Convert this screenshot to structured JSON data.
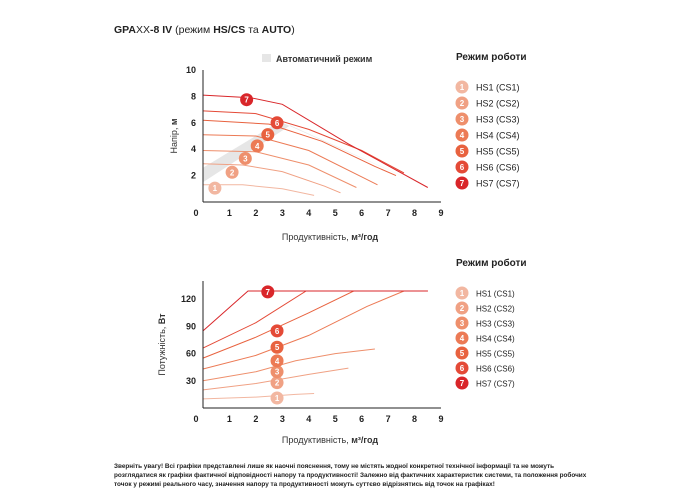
{
  "header": {
    "title_prefix": "GPA",
    "title_xx": "XX",
    "title_model": "-8 IV",
    "title_mid": " (режим ",
    "title_hscs": "HS/CS",
    "title_and": " та ",
    "title_auto": "AUTO",
    "title_end": ")"
  },
  "colors": {
    "mode1": "#f2b7a1",
    "mode2": "#f0a184",
    "mode3": "#ee8f6c",
    "mode4": "#ec7a55",
    "mode5": "#e8623f",
    "mode6": "#e44a37",
    "mode7": "#d9262a",
    "auto_area": "#e6e6e6",
    "axis": "#222222"
  },
  "legend_top": {
    "title": "Режим роботи",
    "items": [
      {
        "num": "1",
        "label": "HS1 (CS1)"
      },
      {
        "num": "2",
        "label": "HS2 (CS2)"
      },
      {
        "num": "3",
        "label": "HS3 (CS3)"
      },
      {
        "num": "4",
        "label": "HS4 (CS4)"
      },
      {
        "num": "5",
        "label": "HS5 (CS5)"
      },
      {
        "num": "6",
        "label": "HS6 (CS6)"
      },
      {
        "num": "7",
        "label": "HS7 (CS7)"
      }
    ]
  },
  "legend_bottom": {
    "title": "Режим роботи",
    "items": [
      {
        "num": "1",
        "label": "HS1 (CS1)"
      },
      {
        "num": "2",
        "label": "HS2 (CS2)"
      },
      {
        "num": "3",
        "label": "HS3 (CS3)"
      },
      {
        "num": "4",
        "label": "HS4 (CS4)"
      },
      {
        "num": "5",
        "label": "HS5 (CS5)"
      },
      {
        "num": "6",
        "label": "HS6 (CS6)"
      },
      {
        "num": "7",
        "label": "HS7 (CS7)"
      }
    ]
  },
  "chart_data": [
    {
      "type": "line",
      "title": "",
      "legend_area_label": "Автоматичний режим",
      "xlabel": "Продуктивність, ",
      "xlabel_unit": "м³/год",
      "ylabel": "Напір, ",
      "ylabel_unit": "м",
      "xlim": [
        0,
        9
      ],
      "ylim": [
        0,
        10
      ],
      "xticks": [
        "0",
        "1",
        "2",
        "3",
        "4",
        "5",
        "6",
        "7",
        "8",
        "9"
      ],
      "yticks": [
        "2",
        "4",
        "6",
        "8",
        "10"
      ],
      "grid": false,
      "auto_area": [
        [
          0,
          1.5
        ],
        [
          3.3,
          5.8
        ],
        [
          8.5,
          1.1
        ],
        [
          8.5,
          1.1
        ],
        [
          2.9,
          6.1
        ],
        [
          0,
          2.6
        ]
      ],
      "series": [
        {
          "mode": "1",
          "points": [
            [
              0,
              1.3
            ],
            [
              1.5,
              1.3
            ],
            [
              3,
              1.0
            ],
            [
              4.2,
              0.5
            ]
          ],
          "marker": [
            0.45,
            1.05
          ]
        },
        {
          "mode": "2",
          "points": [
            [
              0,
              2.9
            ],
            [
              1.5,
              2.8
            ],
            [
              3,
              2.3
            ],
            [
              4.6,
              1.2
            ],
            [
              5.2,
              0.7
            ]
          ],
          "marker": [
            1.1,
            2.25
          ]
        },
        {
          "mode": "3",
          "points": [
            [
              0,
              3.9
            ],
            [
              2,
              3.8
            ],
            [
              4,
              2.8
            ],
            [
              5.8,
              1.1
            ]
          ],
          "marker": [
            1.6,
            3.3
          ]
        },
        {
          "mode": "4",
          "points": [
            [
              0,
              5.1
            ],
            [
              2,
              5.0
            ],
            [
              4,
              3.9
            ],
            [
              6.1,
              1.8
            ],
            [
              6.6,
              1.3
            ]
          ],
          "marker": [
            2.05,
            4.25
          ]
        },
        {
          "mode": "5",
          "points": [
            [
              0,
              6.2
            ],
            [
              2.5,
              5.9
            ],
            [
              4.5,
              4.6
            ],
            [
              6.5,
              2.7
            ],
            [
              7.3,
              2.0
            ]
          ],
          "marker": [
            2.45,
            5.1
          ]
        },
        {
          "mode": "6",
          "points": [
            [
              0,
              6.9
            ],
            [
              2,
              6.7
            ],
            [
              4,
              5.5
            ],
            [
              6,
              3.9
            ],
            [
              7.6,
              2.2
            ]
          ],
          "marker": [
            2.8,
            6.0
          ]
        },
        {
          "mode": "7",
          "points": [
            [
              0,
              8.1
            ],
            [
              1.8,
              7.9
            ],
            [
              3,
              7.4
            ],
            [
              5.5,
              4.4
            ],
            [
              8.5,
              1.1
            ]
          ],
          "marker": [
            1.65,
            7.75
          ]
        }
      ]
    },
    {
      "type": "line",
      "title": "",
      "xlabel": "Продуктивність, ",
      "xlabel_unit": "м³/год",
      "ylabel": "Потужність, ",
      "ylabel_unit": "Вт",
      "xlim": [
        0,
        9
      ],
      "ylim": [
        0,
        140
      ],
      "xticks": [
        "0",
        "1",
        "2",
        "3",
        "4",
        "5",
        "6",
        "7",
        "8",
        "9"
      ],
      "yticks": [
        "30",
        "60",
        "90",
        "120"
      ],
      "grid": false,
      "series": [
        {
          "mode": "1",
          "points": [
            [
              0,
              10
            ],
            [
              2,
              12
            ],
            [
              3.5,
              15
            ],
            [
              4.2,
              16
            ]
          ],
          "marker": [
            2.8,
            11
          ]
        },
        {
          "mode": "2",
          "points": [
            [
              0,
              20
            ],
            [
              2,
              27
            ],
            [
              4,
              37
            ],
            [
              5.5,
              44
            ]
          ],
          "marker": [
            2.8,
            28
          ]
        },
        {
          "mode": "3",
          "points": [
            [
              0,
              30
            ],
            [
              2,
              40
            ],
            [
              3.5,
              52
            ],
            [
              5,
              60
            ],
            [
              6.5,
              65
            ]
          ],
          "marker": [
            2.8,
            40
          ]
        },
        {
          "mode": "4",
          "points": [
            [
              0,
              43
            ],
            [
              2,
              58
            ],
            [
              4,
              80
            ],
            [
              6.2,
              112
            ],
            [
              7.6,
              129
            ]
          ],
          "marker": [
            2.8,
            52
          ]
        },
        {
          "mode": "5",
          "points": [
            [
              0,
              55
            ],
            [
              2,
              78
            ],
            [
              4,
              105
            ],
            [
              5.7,
              129
            ],
            [
              8.5,
              129
            ]
          ],
          "marker": [
            2.8,
            67
          ]
        },
        {
          "mode": "6",
          "points": [
            [
              0,
              66
            ],
            [
              2,
              94
            ],
            [
              3.9,
              129
            ],
            [
              8.5,
              129
            ]
          ],
          "marker": [
            2.8,
            85
          ]
        },
        {
          "mode": "7",
          "points": [
            [
              0,
              85
            ],
            [
              1.7,
              129
            ],
            [
              8.5,
              129
            ]
          ],
          "marker": [
            2.45,
            128
          ]
        }
      ]
    }
  ],
  "disclaimer": {
    "bold_part": "Зверніть увагу! Всі графіки представлені лише як наочні пояснення, тому не містять жодної конкретної технічної інформації та не можуть розглядатися як графіки фактичної відповідності напору та продуктивності! Залежно від фактичних характеристик системи, та положення робочих точок у режимі реального часу, значення напору та продуктивності можуть суттєво відрізнятись від точок на графіках!"
  }
}
